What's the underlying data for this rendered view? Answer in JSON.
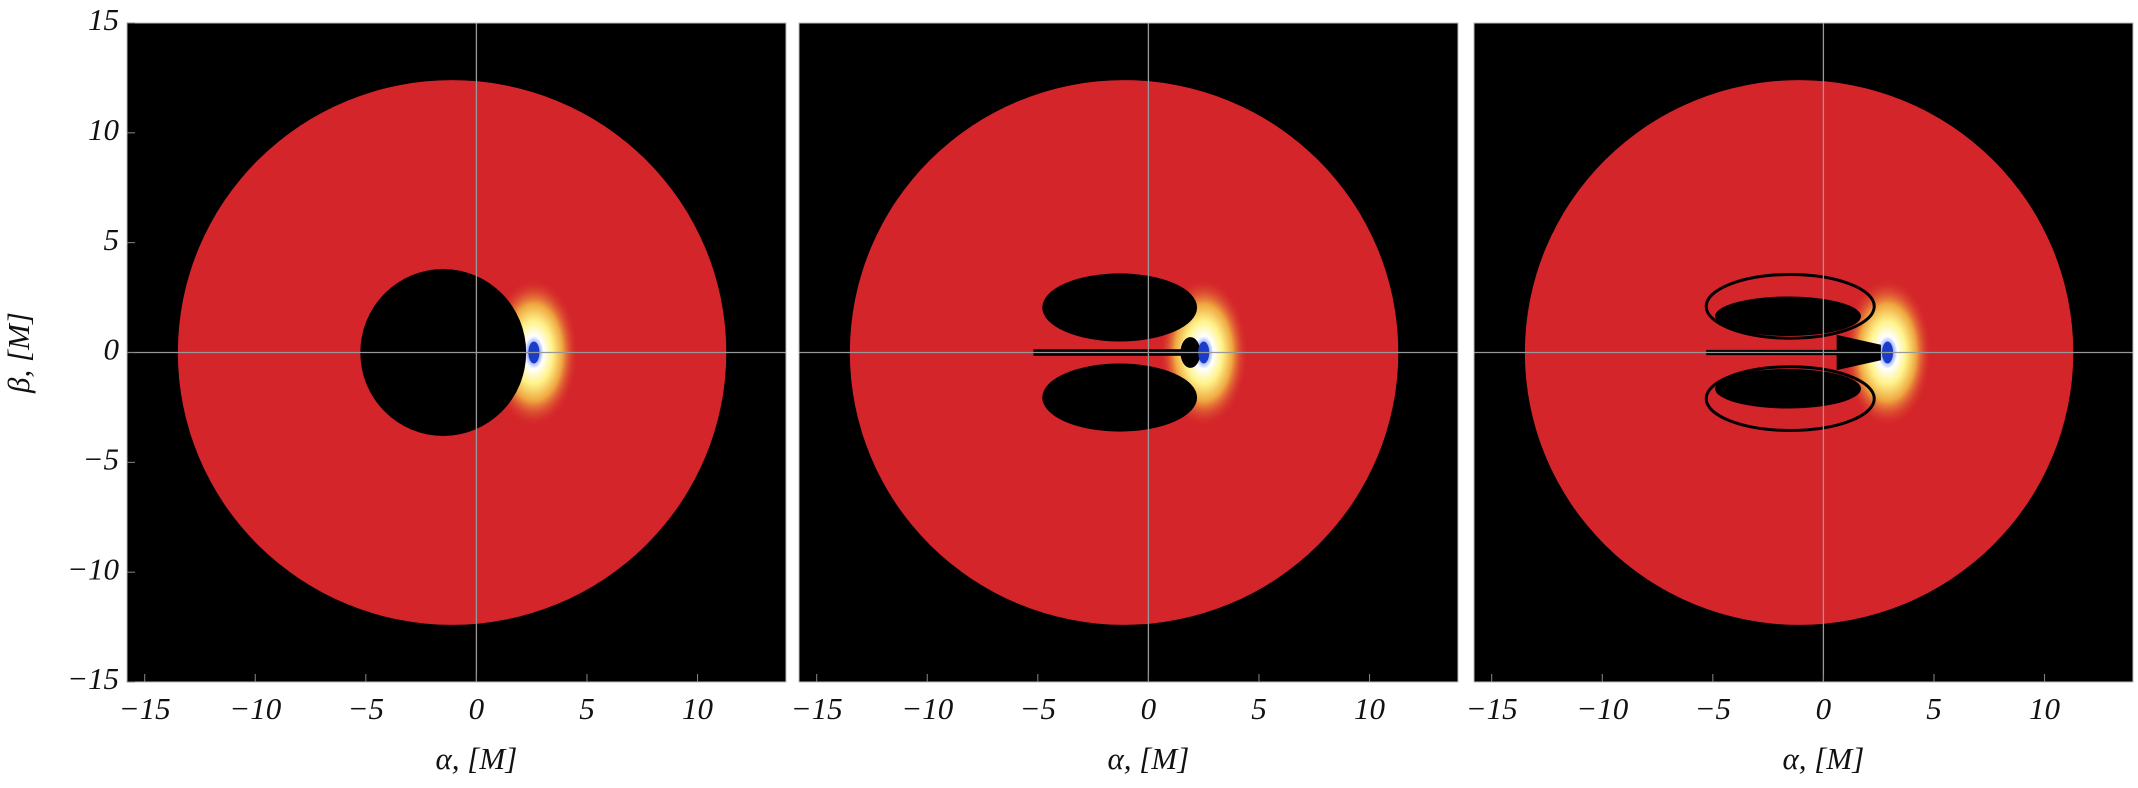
{
  "chart_data": [
    {
      "type": "image",
      "xlabel": "α, [M]",
      "ylabel": "β, [M]",
      "xlim": [
        -15.8,
        14
      ],
      "ylim": [
        -15,
        15
      ],
      "xticks": [
        {
          "value": -15,
          "label": "−15"
        },
        {
          "value": -10,
          "label": "−10"
        },
        {
          "value": -5,
          "label": "−5"
        },
        0,
        5,
        10
      ],
      "yticks": [
        {
          "value": -15,
          "label": "−15"
        },
        {
          "value": -10,
          "label": "−10"
        },
        {
          "value": -5,
          "label": "−5"
        },
        0,
        5,
        10,
        15
      ]
    },
    {
      "type": "image",
      "xlabel": "α, [M]",
      "xlim": [
        -15.8,
        14
      ],
      "ylim": [
        -15,
        15
      ],
      "xticks": [
        {
          "value": -15,
          "label": "−15"
        },
        {
          "value": -10,
          "label": "−10"
        },
        {
          "value": -5,
          "label": "−5"
        },
        0,
        5,
        10
      ]
    },
    {
      "type": "image",
      "xlabel": "α, [M]",
      "xlim": [
        -15.8,
        14
      ],
      "ylim": [
        -15,
        15
      ],
      "xticks": [
        {
          "value": -15,
          "label": "−15"
        },
        {
          "value": -10,
          "label": "−10"
        },
        {
          "value": -5,
          "label": "−5"
        },
        0,
        5,
        10
      ]
    }
  ]
}
